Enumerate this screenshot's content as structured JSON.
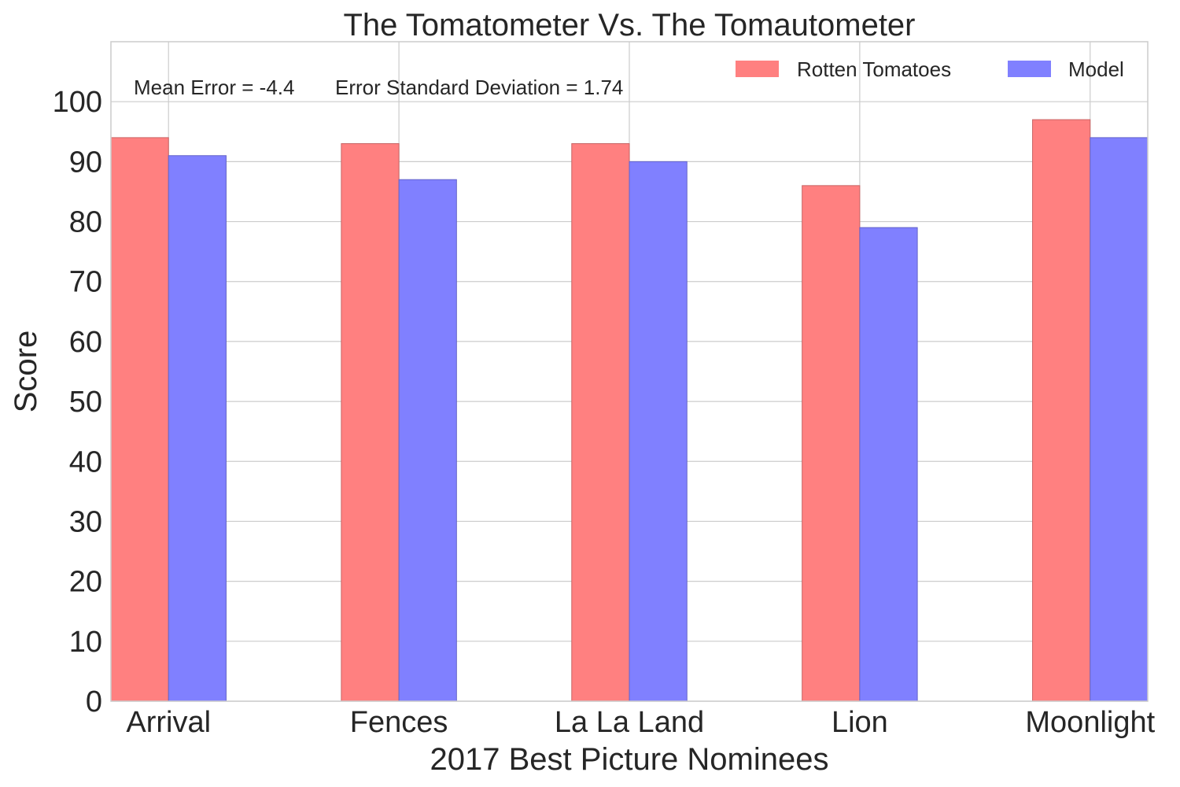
{
  "chart_data": {
    "type": "bar",
    "title": "The Tomatometer Vs. The Tomautometer",
    "xlabel": "2017 Best Picture Nominees",
    "ylabel": "Score",
    "categories": [
      "Arrival",
      "Fences",
      "La La Land",
      "Lion",
      "Moonlight"
    ],
    "series": [
      {
        "name": "Rotten Tomatoes",
        "color": "#ff8080",
        "values": [
          94,
          93,
          93,
          86,
          97
        ]
      },
      {
        "name": "Model",
        "color": "#8080ff",
        "values": [
          91,
          87,
          90,
          79,
          94
        ]
      }
    ],
    "ylim": [
      0,
      110
    ],
    "yticks": [
      0,
      10,
      20,
      30,
      40,
      50,
      60,
      70,
      80,
      90,
      100
    ],
    "grid": true,
    "legend_position": "top-right",
    "annotations": [
      "Mean Error = -4.4",
      "Error Standard Deviation = 1.74"
    ]
  }
}
